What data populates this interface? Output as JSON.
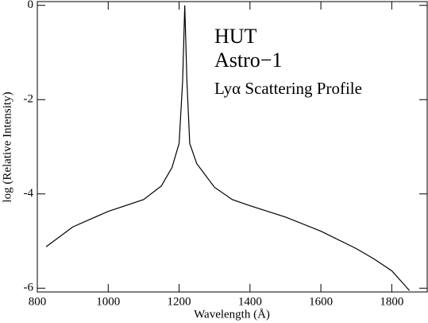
{
  "chart_data": {
    "type": "line",
    "annotations": [
      "HUT",
      "Astro−1",
      "Lyα Scattering Profile"
    ],
    "x_label": "Wavelength (Å)",
    "y_label": "log (Relative Intensity)",
    "series": [
      {
        "color": "#000000",
        "x": [
          825,
          900,
          1000,
          1100,
          1150,
          1180,
          1200,
          1210,
          1216,
          1222,
          1230,
          1250,
          1300,
          1350,
          1400,
          1500,
          1600,
          1700,
          1750,
          1800,
          1850
        ],
        "values": [
          -5.12,
          -4.7,
          -4.37,
          -4.12,
          -3.83,
          -3.44,
          -2.93,
          -1.6,
          0,
          -1.6,
          -2.93,
          -3.36,
          -3.86,
          -4.12,
          -4.25,
          -4.49,
          -4.79,
          -5.16,
          -5.38,
          -5.63,
          -6.05
        ]
      }
    ],
    "xlim": [
      800,
      1900
    ],
    "xticks": [
      800,
      1000,
      1200,
      1400,
      1600,
      1800
    ],
    "ylim": [
      -6.08,
      0.08
    ],
    "yticks": [
      0,
      -2,
      -4,
      -6
    ]
  }
}
